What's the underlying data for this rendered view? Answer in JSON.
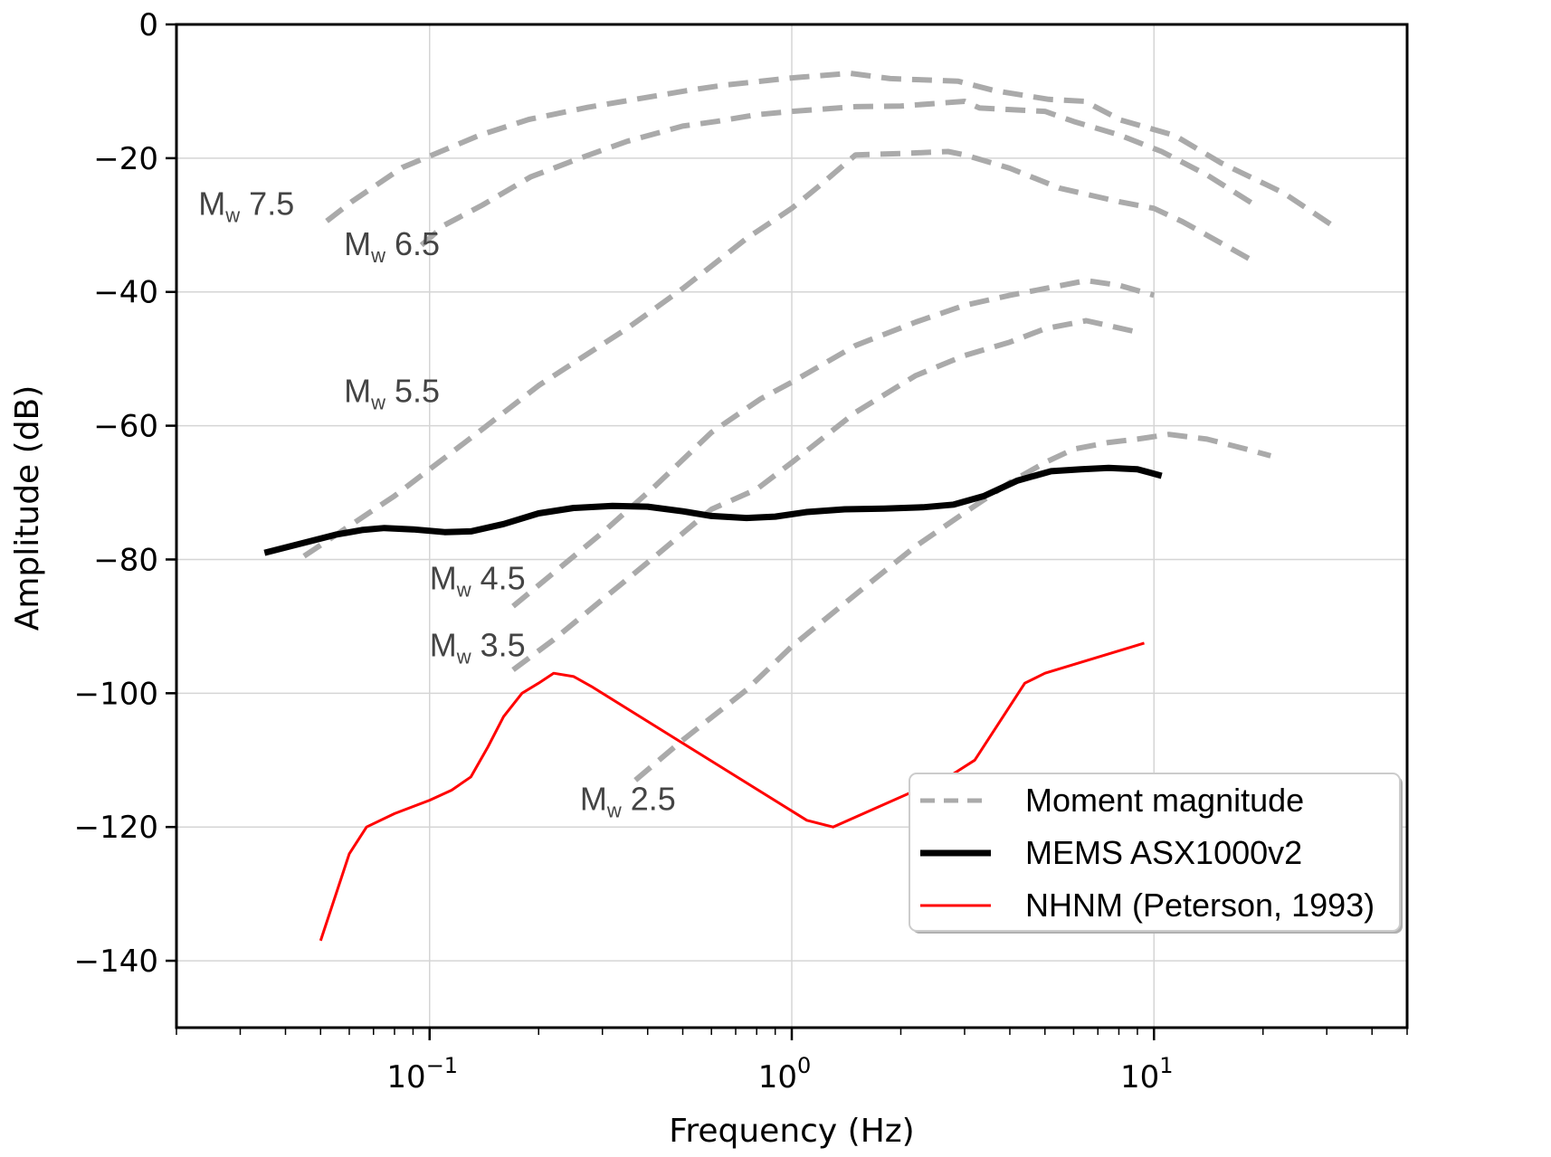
{
  "chart_data": {
    "type": "line",
    "title": "",
    "xlabel": "Frequency (Hz)",
    "ylabel": "Amplitude (dB)",
    "xscale": "log",
    "xlim": [
      0.02,
      50
    ],
    "ylim": [
      -150,
      0
    ],
    "grid": true,
    "legend_position": "bottom-right",
    "x_ticks": [
      {
        "value": 0.1,
        "base": "10",
        "exp": "−1"
      },
      {
        "value": 1,
        "base": "10",
        "exp": "0"
      },
      {
        "value": 10,
        "base": "10",
        "exp": "1"
      }
    ],
    "y_ticks": [
      {
        "value": 0,
        "label": "0"
      },
      {
        "value": -20,
        "label": "−20"
      },
      {
        "value": -40,
        "label": "−40"
      },
      {
        "value": -60,
        "label": "−60"
      },
      {
        "value": -80,
        "label": "−80"
      },
      {
        "value": -100,
        "label": "−100"
      },
      {
        "value": -120,
        "label": "−120"
      },
      {
        "value": -140,
        "label": "−140"
      }
    ],
    "legend": [
      {
        "label": "Moment magnitude",
        "style": "dashed",
        "color": "#aaaaaa"
      },
      {
        "label": "MEMS ASX1000v2",
        "style": "solid-thick",
        "color": "#000000"
      },
      {
        "label": "NHNM (Peterson, 1993)",
        "style": "solid",
        "color": "#ff0000"
      }
    ],
    "series": [
      {
        "name": "Mw 7.5",
        "group": "Moment magnitude",
        "color": "#aaaaaa",
        "style": "dashed",
        "label": {
          "main": "M",
          "sub": "w",
          "value": " 7.5",
          "at": [
            0.023,
            -28.5
          ]
        },
        "x": [
          0.052,
          0.061,
          0.084,
          0.1,
          0.137,
          0.188,
          0.273,
          0.343,
          0.513,
          0.646,
          1.0,
          1.45,
          1.87,
          2.88,
          3.63,
          5.12,
          6.44,
          8.1,
          11.4,
          15.3,
          22.8,
          31.4
        ],
        "y": [
          -29.4,
          -26.5,
          -21.4,
          -19.7,
          -16.6,
          -14.2,
          -12.4,
          -11.5,
          -9.9,
          -9.1,
          -8.0,
          -7.3,
          -8.1,
          -8.5,
          -9.9,
          -11.2,
          -11.5,
          -14.3,
          -16.6,
          -20.7,
          -25.2,
          -30.2
        ]
      },
      {
        "name": "Mw 6.5",
        "group": "Moment magnitude",
        "color": "#aaaaaa",
        "style": "dashed",
        "label": {
          "main": "M",
          "sub": "w",
          "value": " 6.5",
          "at": [
            0.058,
            -34.5
          ]
        },
        "x": [
          0.095,
          0.11,
          0.14,
          0.19,
          0.26,
          0.35,
          0.5,
          0.62,
          0.8,
          1.0,
          1.5,
          2.0,
          3.0,
          3.3,
          5.0,
          6.0,
          8.0,
          10.5,
          14.0,
          19.0
        ],
        "y": [
          -33.0,
          -30.0,
          -27.0,
          -22.8,
          -20.0,
          -17.5,
          -15.2,
          -14.5,
          -13.5,
          -13.0,
          -12.3,
          -12.2,
          -11.5,
          -12.5,
          -13.0,
          -14.5,
          -16.5,
          -19.0,
          -22.5,
          -27.0
        ]
      },
      {
        "name": "Mw 5.5",
        "group": "Moment magnitude",
        "color": "#aaaaaa",
        "style": "dashed",
        "label": {
          "main": "M",
          "sub": "w",
          "value": " 5.5",
          "at": [
            0.058,
            -56.5
          ]
        },
        "x": [
          0.045,
          0.06,
          0.08,
          0.1,
          0.14,
          0.2,
          0.26,
          0.35,
          0.5,
          0.75,
          1.0,
          1.2,
          1.5,
          2.0,
          2.7,
          3.0,
          4.0,
          5.5,
          8.0,
          10.0,
          12.0,
          19.0
        ],
        "y": [
          -79.5,
          -75.0,
          -70.5,
          -66.5,
          -60.5,
          -54.0,
          -50.0,
          -45.5,
          -39.5,
          -32.0,
          -27.5,
          -24.0,
          -19.5,
          -19.3,
          -19.0,
          -19.5,
          -21.5,
          -24.5,
          -26.5,
          -27.5,
          -29.5,
          -35.5
        ]
      },
      {
        "name": "Mw 4.5",
        "group": "Moment magnitude",
        "color": "#aaaaaa",
        "style": "dashed",
        "label": {
          "main": "M",
          "sub": "w",
          "value": " 4.5",
          "at": [
            0.1,
            -84.5
          ]
        },
        "x": [
          0.17,
          0.22,
          0.3,
          0.42,
          0.6,
          0.82,
          1.0,
          1.5,
          2.2,
          3.0,
          4.0,
          5.0,
          6.5,
          8.0,
          10.0
        ],
        "y": [
          -87.0,
          -82.0,
          -76.0,
          -69.0,
          -61.0,
          -56.0,
          -53.5,
          -48.0,
          -44.5,
          -42.0,
          -40.5,
          -39.5,
          -38.3,
          -39.0,
          -40.5
        ]
      },
      {
        "name": "Mw 3.5",
        "group": "Moment magnitude",
        "color": "#aaaaaa",
        "style": "dashed",
        "label": {
          "main": "M",
          "sub": "w",
          "value": " 3.5",
          "at": [
            0.1,
            -94.5
          ]
        },
        "x": [
          0.17,
          0.22,
          0.3,
          0.42,
          0.6,
          0.8,
          1.0,
          1.5,
          2.2,
          3.0,
          4.0,
          5.0,
          6.5,
          9.0
        ],
        "y": [
          -96.5,
          -92.0,
          -86.0,
          -79.5,
          -72.5,
          -69.5,
          -65.5,
          -58.0,
          -52.5,
          -49.5,
          -47.5,
          -45.5,
          -44.3,
          -46.0
        ]
      },
      {
        "name": "Mw 2.5",
        "group": "Moment magnitude",
        "color": "#aaaaaa",
        "style": "dashed",
        "label": {
          "main": "M",
          "sub": "w",
          "value": " 2.5",
          "at": [
            0.26,
            -117.5
          ]
        },
        "x": [
          0.37,
          0.5,
          0.75,
          1.0,
          1.2,
          1.6,
          2.2,
          3.0,
          4.0,
          5.0,
          6.0,
          7.5,
          9.0,
          11.0,
          14.0,
          18.0,
          21.0
        ],
        "y": [
          -113.0,
          -107.0,
          -99.5,
          -93.0,
          -89.5,
          -84.0,
          -78.0,
          -73.0,
          -68.5,
          -65.5,
          -63.5,
          -62.5,
          -62.0,
          -61.3,
          -62.0,
          -63.5,
          -64.5
        ]
      },
      {
        "name": "MEMS ASX1000v2",
        "group": "MEMS ASX1000v2",
        "color": "#000000",
        "style": "solid-thick",
        "x": [
          0.035,
          0.045,
          0.055,
          0.065,
          0.075,
          0.09,
          0.11,
          0.13,
          0.16,
          0.2,
          0.25,
          0.32,
          0.4,
          0.5,
          0.6,
          0.75,
          0.9,
          1.1,
          1.4,
          1.8,
          2.3,
          2.8,
          3.4,
          4.2,
          5.2,
          6.3,
          7.5,
          9.0,
          10.5
        ],
        "y": [
          -79.0,
          -77.5,
          -76.3,
          -75.6,
          -75.3,
          -75.5,
          -75.9,
          -75.8,
          -74.7,
          -73.1,
          -72.3,
          -72.0,
          -72.1,
          -72.8,
          -73.5,
          -73.8,
          -73.6,
          -72.9,
          -72.5,
          -72.4,
          -72.2,
          -71.8,
          -70.5,
          -68.2,
          -66.8,
          -66.5,
          -66.3,
          -66.5,
          -67.5
        ]
      },
      {
        "name": "NHNM (Peterson, 1993)",
        "group": "NHNM (Peterson, 1993)",
        "color": "#ff0000",
        "style": "solid",
        "x": [
          0.05,
          0.06,
          0.067,
          0.08,
          0.1,
          0.115,
          0.13,
          0.145,
          0.16,
          0.18,
          0.2,
          0.22,
          0.25,
          0.28,
          1.1,
          1.3,
          2.8,
          3.2,
          4.4,
          5.0,
          9.4
        ],
        "y": [
          -137.0,
          -124.0,
          -120.0,
          -118.0,
          -116.0,
          -114.5,
          -112.5,
          -108.0,
          -103.5,
          -100.0,
          -98.5,
          -97.0,
          -97.5,
          -99.0,
          -119.0,
          -120.0,
          -112.0,
          -110.0,
          -98.5,
          -97.0,
          -92.5
        ]
      }
    ]
  }
}
